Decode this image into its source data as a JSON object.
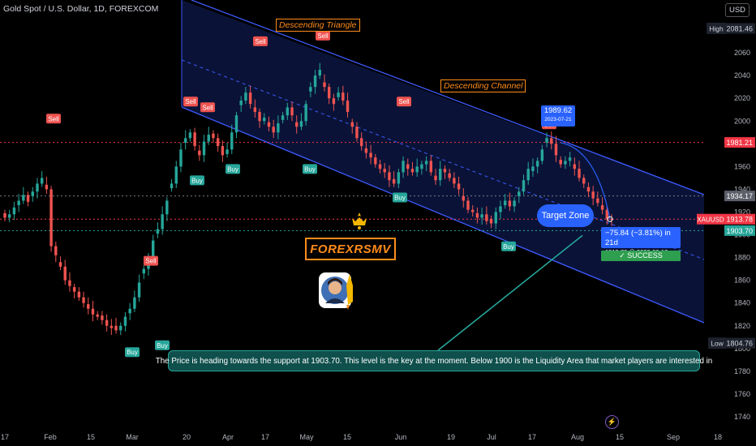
{
  "header": {
    "title": "Gold Spot / U.S. Dollar, 1D, FOREXCOM",
    "currency_button": "USD"
  },
  "chart_data": {
    "type": "candlestick",
    "symbol": "XAUUSD",
    "timeframe": "1D",
    "x_ticks": [
      "17",
      "Feb",
      "15",
      "Mar",
      "20",
      "Apr",
      "17",
      "May",
      "15",
      "Jun",
      "19",
      "Jul",
      "17",
      "Aug",
      "15",
      "Sep",
      "18"
    ],
    "y_ticks": [
      1740,
      1760,
      1780,
      1800,
      1820,
      1840,
      1860,
      1880,
      1900,
      1920,
      1940,
      1960,
      1980,
      2000,
      2020,
      2040,
      2060
    ],
    "ylim": [
      1730,
      2090
    ],
    "close_path": [
      1915,
      1918,
      1924,
      1930,
      1935,
      1929,
      1938,
      1945,
      1950,
      1940,
      1890,
      1882,
      1872,
      1860,
      1855,
      1850,
      1845,
      1840,
      1835,
      1830,
      1828,
      1825,
      1820,
      1818,
      1816,
      1820,
      1828,
      1835,
      1845,
      1858,
      1870,
      1880,
      1895,
      1905,
      1918,
      1930,
      1945,
      1960,
      1975,
      1985,
      1990,
      1978,
      1970,
      1982,
      1988,
      1985,
      1978,
      1970,
      1975,
      1990,
      2005,
      2018,
      2025,
      2015,
      2008,
      2000,
      2003,
      1995,
      1990,
      1998,
      2005,
      2012,
      2005,
      1995,
      2000,
      2015,
      2030,
      2040,
      2045,
      2030,
      2020,
      2015,
      2025,
      2018,
      2008,
      1995,
      1985,
      1978,
      1972,
      1968,
      1962,
      1958,
      1955,
      1948,
      1945,
      1955,
      1965,
      1958,
      1955,
      1960,
      1962,
      1965,
      1955,
      1948,
      1958,
      1955,
      1950,
      1945,
      1940,
      1930,
      1922,
      1920,
      1915,
      1918,
      1912,
      1910,
      1920,
      1925,
      1930,
      1925,
      1930,
      1938,
      1948,
      1958,
      1960,
      1965,
      1975,
      1985,
      1980,
      1970,
      1962,
      1965,
      1968,
      1958,
      1950,
      1945,
      1938,
      1932,
      1928,
      1922,
      1914,
      1913.78
    ],
    "high_value": "2081.46",
    "low_value": "1804.76",
    "current_value": "1913.78",
    "levels": [
      {
        "value": 1981.21,
        "label": "1981.21",
        "color": "#f23645"
      },
      {
        "value": 1934.17,
        "label": "1934.17",
        "color": "#787b86"
      },
      {
        "value": 1913.78,
        "label": "1913.78",
        "color": "#f23645"
      },
      {
        "value": 1903.7,
        "label": "1903.70",
        "color": "#26a69a"
      }
    ],
    "signals": [
      {
        "type": "Sell",
        "x_tick": "17",
        "price": 1995
      },
      {
        "type": "Sell",
        "x_tick": "Mar",
        "price": 1870
      },
      {
        "type": "Buy",
        "x_tick": "Mar",
        "price": 1804
      },
      {
        "type": "Buy",
        "x_tick": "Mar",
        "price": 1810
      },
      {
        "type": "Sell",
        "x_tick": "20",
        "price": 2010
      },
      {
        "type": "Sell",
        "x_tick": "20",
        "price": 2005
      },
      {
        "type": "Buy",
        "x_tick": "20",
        "price": 1955
      },
      {
        "type": "Buy",
        "x_tick": "Apr",
        "price": 1965
      },
      {
        "type": "Sell",
        "x_tick": "Apr",
        "price": 2063
      },
      {
        "type": "Buy",
        "x_tick": "17",
        "price": 1965
      },
      {
        "type": "Sell",
        "x_tick": "May",
        "price": 2068
      },
      {
        "type": "Sell",
        "x_tick": "Jun",
        "price": 2010
      },
      {
        "type": "Buy",
        "x_tick": "Jun",
        "price": 1940
      },
      {
        "type": "Buy",
        "x_tick": "Jul",
        "price": 1897
      },
      {
        "type": "Sell",
        "x_tick": "17",
        "price": 1990
      }
    ],
    "annotations": {
      "triangle": "Descending Triangle",
      "channel": "Descending Channel",
      "brand": "FOREXRSMV",
      "target_zone": "Target Zone",
      "point_value": "1989.62",
      "point_date": "2023-07-21",
      "measure_line1": "−75.84 (−3.81%) in 21d",
      "measure_line2": "1913.78 @ 2023-08-10",
      "success": "✓ SUCCESS",
      "note": "The Price is heading towards the support at 1903.70. This level is the key at the moment. Below 1900 is the Liquidity Area that market players are interested in"
    },
    "label_texts": {
      "high": "High",
      "low": "Low",
      "symbol": "XAUUSD",
      "sell": "Sell",
      "buy": "Buy"
    },
    "colors": {
      "up": "#26a69a",
      "down": "#ef5350",
      "channel": "#3d5afe",
      "sell": "#ef5350",
      "buy": "#26a69a",
      "accent": "#ff8c1a"
    }
  }
}
